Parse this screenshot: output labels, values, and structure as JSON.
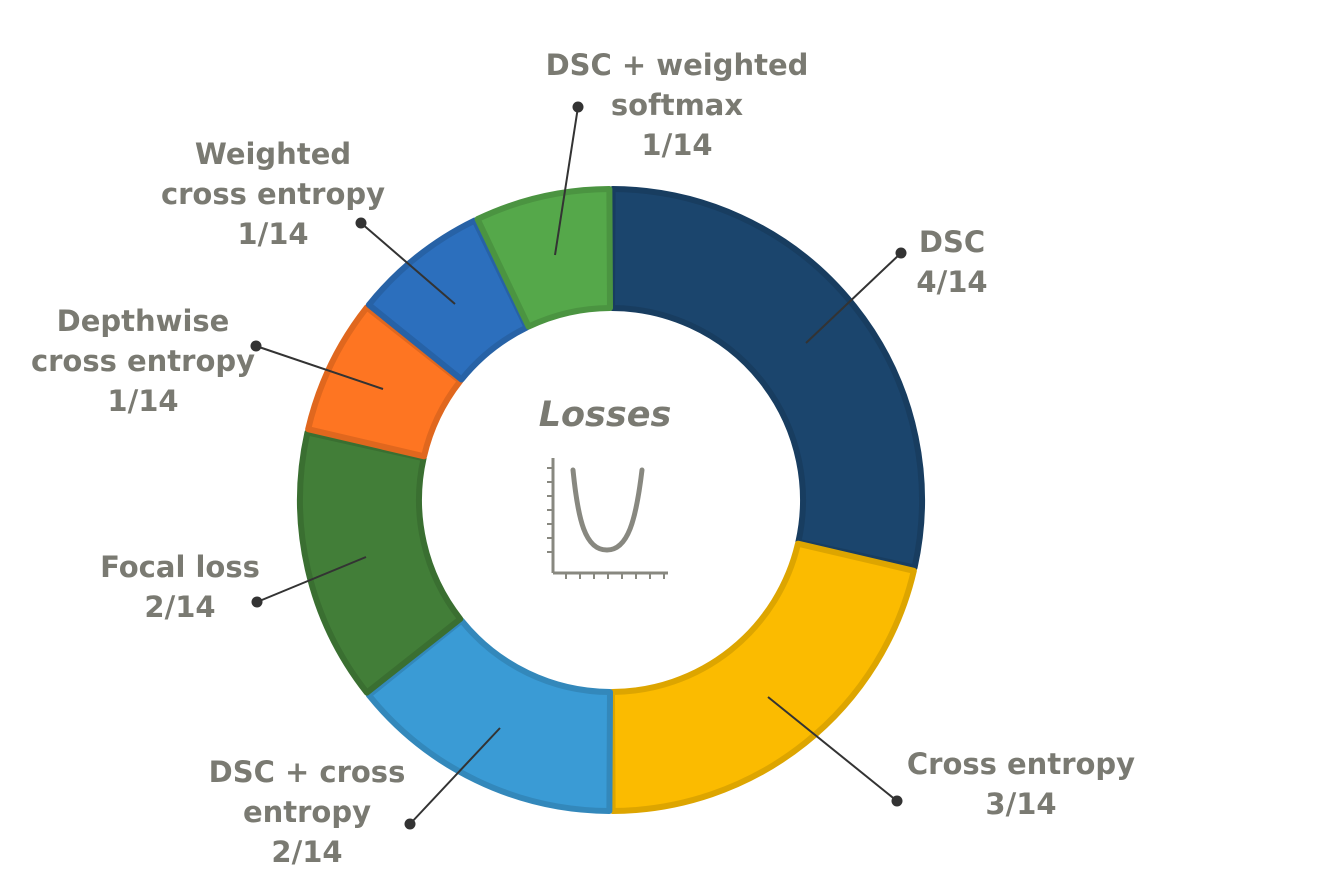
{
  "center": {
    "title": "Losses",
    "icon": "u-shaped-loss-curve-icon"
  },
  "chart_data": {
    "type": "pie",
    "donut": true,
    "total": 14,
    "slices": [
      {
        "name": "DSC",
        "value": 4,
        "label_value": "4/14",
        "color": "#1b456d"
      },
      {
        "name": "Cross entropy",
        "value": 3,
        "label_value": "3/14",
        "color": "#fbbb00"
      },
      {
        "name": "DSC + cross entropy",
        "value": 2,
        "label_value": "2/14",
        "color": "#3a9bd5"
      },
      {
        "name": "Focal loss",
        "value": 2,
        "label_value": "2/14",
        "color": "#427e38"
      },
      {
        "name": "Depthwise cross entropy",
        "value": 1,
        "label_value": "1/14",
        "color": "#fe7522"
      },
      {
        "name": "Weighted cross entropy",
        "value": 1,
        "label_value": "1/14",
        "color": "#2c6fbd"
      },
      {
        "name": "DSC + weighted softmax",
        "value": 1,
        "label_value": "1/14",
        "color": "#55a84a"
      }
    ],
    "labels": [
      {
        "lines": [
          "DSC",
          "4/14"
        ]
      },
      {
        "lines": [
          "Cross entropy",
          "3/14"
        ]
      },
      {
        "lines": [
          "DSC + cross",
          "entropy",
          "2/14"
        ]
      },
      {
        "lines": [
          "Focal loss",
          "2/14"
        ]
      },
      {
        "lines": [
          "Depthwise",
          "cross entropy",
          "1/14"
        ]
      },
      {
        "lines": [
          "Weighted",
          "cross entropy",
          "1/14"
        ]
      },
      {
        "lines": [
          "DSC + weighted",
          "softmax",
          "1/14"
        ]
      }
    ],
    "leader_color": "#333333",
    "label_color": "#7a7a72"
  }
}
